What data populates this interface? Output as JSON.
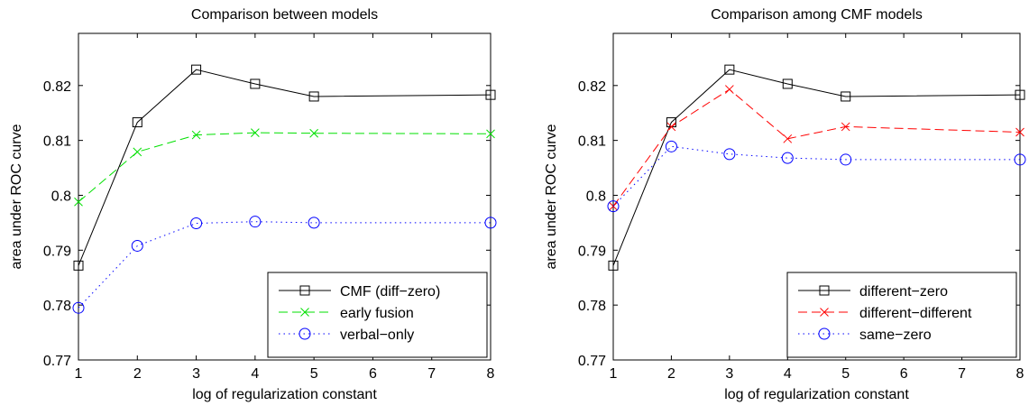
{
  "chart_data": [
    {
      "type": "line",
      "title": "Comparison between models",
      "xlabel": "log of regularization constant",
      "ylabel": "area under ROC curve",
      "x_positions": [
        1,
        2,
        3,
        4,
        5,
        6,
        7,
        8
      ],
      "x_tick_labels": [
        "1",
        "2",
        "3",
        "4",
        "5",
        "6",
        "7",
        "8"
      ],
      "xlim": [
        1,
        8
      ],
      "y_ticks": [
        0.77,
        0.78,
        0.79,
        0.8,
        0.81,
        0.82
      ],
      "y_tick_labels": [
        "0.77",
        "0.78",
        "0.79",
        "0.8",
        "0.81",
        "0.82"
      ],
      "ylim": [
        0.77,
        0.8295
      ],
      "grid": false,
      "legend_position": "bottom-right",
      "series": [
        {
          "name": "CMF (diff−zero)",
          "x": [
            1,
            2,
            3,
            4,
            5,
            8
          ],
          "values": [
            0.7872,
            0.8133,
            0.8229,
            0.8203,
            0.818,
            0.8183
          ],
          "color": "#000000",
          "dash": "solid",
          "marker": "square"
        },
        {
          "name": "early fusion",
          "x": [
            1,
            2,
            3,
            4,
            5,
            8
          ],
          "values": [
            0.7988,
            0.8079,
            0.811,
            0.8114,
            0.8113,
            0.8112
          ],
          "color": "#00e000",
          "dash": "dashed",
          "marker": "x"
        },
        {
          "name": "verbal−only",
          "x": [
            1,
            2,
            3,
            4,
            5,
            8
          ],
          "values": [
            0.7795,
            0.7908,
            0.7949,
            0.7952,
            0.795,
            0.795
          ],
          "color": "#0000ff",
          "dash": "dotted",
          "marker": "circle"
        }
      ]
    },
    {
      "type": "line",
      "title": "Comparison among CMF models",
      "xlabel": "log of regularization constant",
      "ylabel": "area under ROC curve",
      "x_positions": [
        1,
        2,
        3,
        4,
        5,
        6,
        7,
        8
      ],
      "x_tick_labels": [
        "1",
        "2",
        "3",
        "4",
        "5",
        "6",
        "7",
        "8"
      ],
      "xlim": [
        1,
        8
      ],
      "y_ticks": [
        0.77,
        0.78,
        0.79,
        0.8,
        0.81,
        0.82
      ],
      "y_tick_labels": [
        "0.77",
        "0.78",
        "0.79",
        "0.8",
        "0.81",
        "0.82"
      ],
      "ylim": [
        0.77,
        0.8295
      ],
      "grid": false,
      "legend_position": "bottom-right",
      "series": [
        {
          "name": "different−zero",
          "x": [
            1,
            2,
            3,
            4,
            5,
            8
          ],
          "values": [
            0.7872,
            0.8133,
            0.8229,
            0.8203,
            0.818,
            0.8183
          ],
          "color": "#000000",
          "dash": "solid",
          "marker": "square"
        },
        {
          "name": "different−different",
          "x": [
            1,
            2,
            3,
            4,
            5,
            8
          ],
          "values": [
            0.798,
            0.8125,
            0.8193,
            0.8103,
            0.8125,
            0.8115
          ],
          "color": "#ff0000",
          "dash": "dashed",
          "marker": "x"
        },
        {
          "name": "same−zero",
          "x": [
            1,
            2,
            3,
            4,
            5,
            8
          ],
          "values": [
            0.798,
            0.8089,
            0.8075,
            0.8068,
            0.8065,
            0.8065
          ],
          "color": "#0000ff",
          "dash": "dotted",
          "marker": "circle"
        }
      ]
    }
  ]
}
